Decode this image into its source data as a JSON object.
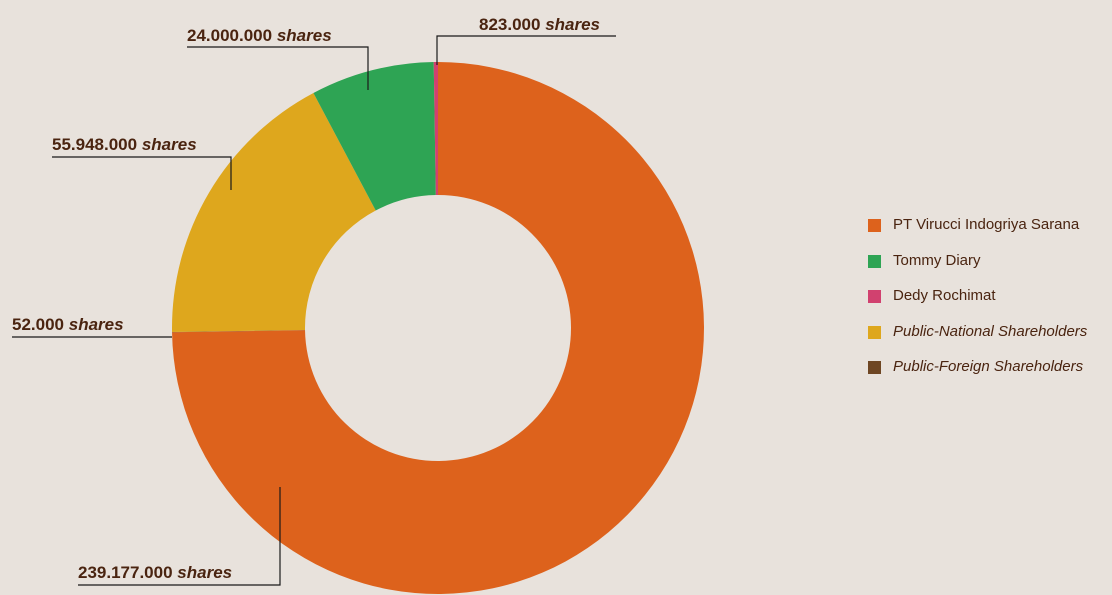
{
  "chart_data": {
    "type": "pie",
    "title": "",
    "donut": true,
    "slices": [
      {
        "label": "PT Virucci Indogriya Sarana",
        "value": 239177000,
        "display": "239.177.000",
        "color": "#dd621c",
        "italic": false
      },
      {
        "label": "Tommy Diary",
        "value": 24000000,
        "display": "24.000.000",
        "color": "#2ea454",
        "italic": false
      },
      {
        "label": "Dedy Rochimat",
        "value": 823000,
        "display": "823.000",
        "color": "#d1416f",
        "italic": false
      },
      {
        "label": "Public-National Shareholders",
        "value": 55948000,
        "display": "55.948.000",
        "color": "#dea71d",
        "italic": true
      },
      {
        "label": "Public-Foreign Shareholders",
        "value": 52000,
        "display": "52.000",
        "color": "#6e4623",
        "italic": true
      }
    ],
    "unit_label": "shares",
    "legend_position": "right"
  },
  "colors": {
    "background": "#e8e2dc",
    "text": "#4a2410",
    "leader_line": "#1a1a1a"
  }
}
